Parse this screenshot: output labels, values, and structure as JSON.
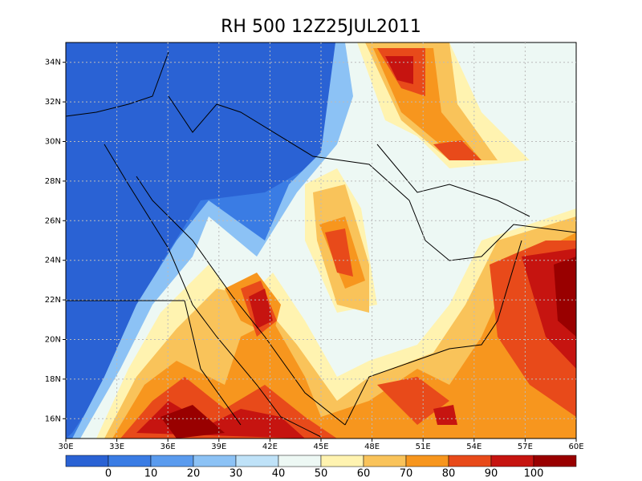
{
  "title": "RH 500  12Z25JUL2011",
  "map": {
    "lonlim": [
      30,
      60
    ],
    "latlim": [
      15,
      35
    ],
    "lonticks": [
      {
        "value": 30,
        "label": "30E"
      },
      {
        "value": 33,
        "label": "33E"
      },
      {
        "value": 36,
        "label": "36E"
      },
      {
        "value": 39,
        "label": "39E"
      },
      {
        "value": 42,
        "label": "42E"
      },
      {
        "value": 45,
        "label": "45E"
      },
      {
        "value": 48,
        "label": "48E"
      },
      {
        "value": 51,
        "label": "51E"
      },
      {
        "value": 54,
        "label": "54E"
      },
      {
        "value": 57,
        "label": "57E"
      },
      {
        "value": 60,
        "label": "60E"
      }
    ],
    "latticks": [
      {
        "value": 16,
        "label": "16N"
      },
      {
        "value": 18,
        "label": "18N"
      },
      {
        "value": 20,
        "label": "20N"
      },
      {
        "value": 22,
        "label": "22N"
      },
      {
        "value": 24,
        "label": "24N"
      },
      {
        "value": 26,
        "label": "26N"
      },
      {
        "value": 28,
        "label": "28N"
      },
      {
        "value": 30,
        "label": "30N"
      },
      {
        "value": 32,
        "label": "32N"
      },
      {
        "value": 34,
        "label": "34N"
      }
    ],
    "grid": true
  },
  "colorbar": {
    "colors": [
      "#2a62d4",
      "#3a7ce4",
      "#5a9bee",
      "#8cc2f5",
      "#bfe2f8",
      "#edf8f4",
      "#fff3b0",
      "#f9c35a",
      "#f7961e",
      "#e84a1a",
      "#c61410",
      "#990000"
    ],
    "levels": [
      0,
      10,
      20,
      30,
      40,
      50,
      60,
      70,
      80,
      90,
      100
    ]
  }
}
